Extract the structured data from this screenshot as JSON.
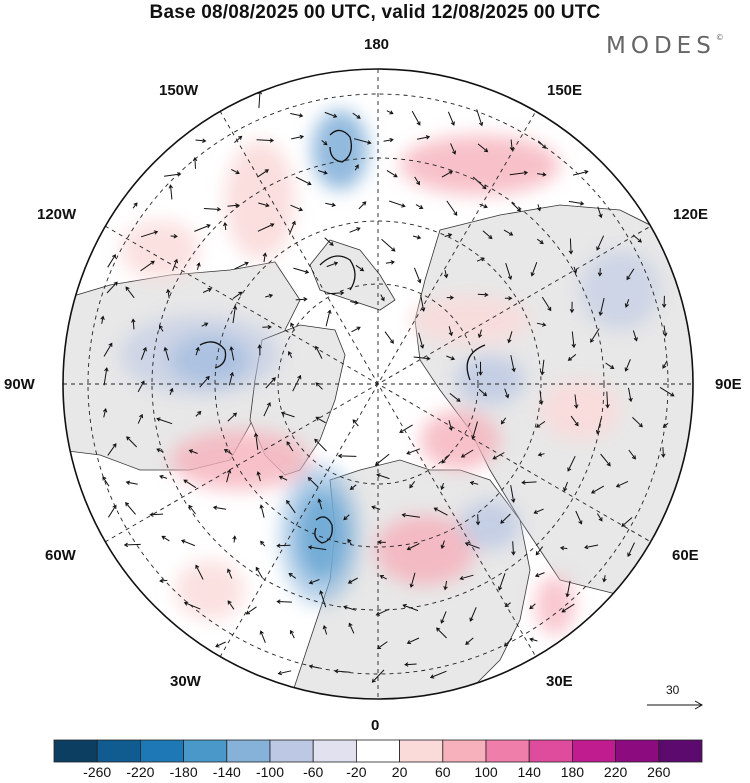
{
  "title": "Base 08/08/2025 00 UTC, valid 12/08/2025 00 UTC",
  "brand": {
    "name": "MODES",
    "mark": "©"
  },
  "labels": {
    "top": "180",
    "bottom": "0",
    "left": "90W",
    "right": "90E",
    "nw1": "150W",
    "nw2": "120W",
    "ne1": "150E",
    "ne2": "120E",
    "sw1": "60W",
    "sw2": "30W",
    "se1": "60E",
    "se2": "30E"
  },
  "vector_reference": {
    "value": "30"
  },
  "colorbar": {
    "colors": [
      "#0b3e61",
      "#105c91",
      "#1e78b6",
      "#4a98ca",
      "#86b2da",
      "#bcc8e4",
      "#e1e1ef",
      "#ffffff",
      "#fbdada",
      "#f6b1bc",
      "#f07eaa",
      "#e04c9d",
      "#c01c8f",
      "#8c0b7f",
      "#5d0a6e"
    ],
    "ticks": [
      "-260",
      "-220",
      "-180",
      "-140",
      "-100",
      "-60",
      "-20",
      "20",
      "60",
      "100",
      "140",
      "180",
      "220",
      "260"
    ]
  },
  "icons": [
    "reference-vector-arrow-icon"
  ]
}
